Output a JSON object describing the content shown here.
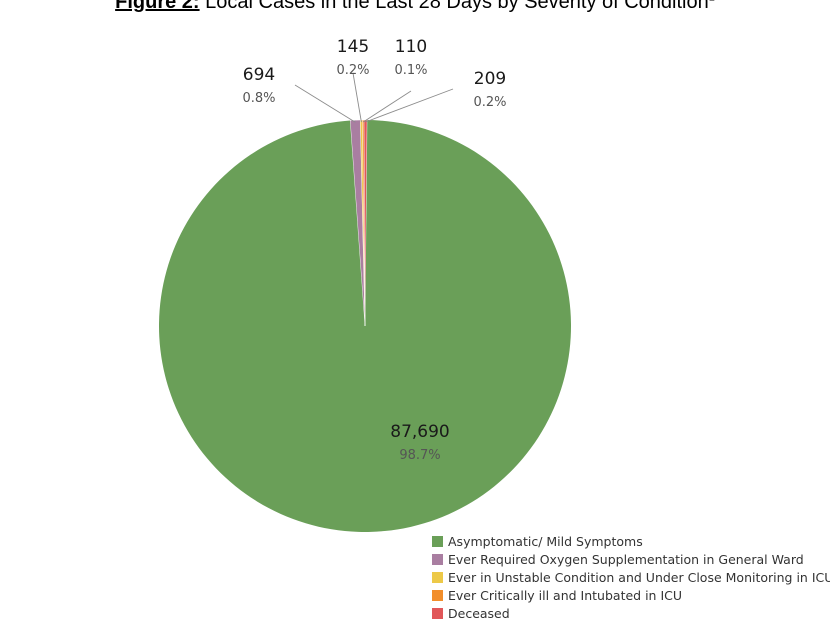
{
  "title": {
    "label": "Figure 2:",
    "text": "Local Cases in the Last 28 Days by Severity of Condition",
    "footnote": "1"
  },
  "chart_data": {
    "type": "pie",
    "legend_position": "bottom-right",
    "categories": [
      "Asymptomatic/ Mild Symptoms",
      "Ever Required Oxygen Supplementation in General Ward",
      "Ever in Unstable Condition and Under Close Monitoring in ICU",
      "Ever Critically ill and Intubated in ICU",
      "Deceased"
    ],
    "values": [
      87690,
      694,
      145,
      110,
      209
    ],
    "value_labels": [
      "87,690",
      "694",
      "145",
      "110",
      "209"
    ],
    "percent_labels": [
      "98.7%",
      "0.8%",
      "0.2%",
      "0.1%",
      "0.2%"
    ],
    "colors": [
      "#6a9f58",
      "#a97ea1",
      "#edc948",
      "#f28e2b",
      "#e15759"
    ]
  }
}
